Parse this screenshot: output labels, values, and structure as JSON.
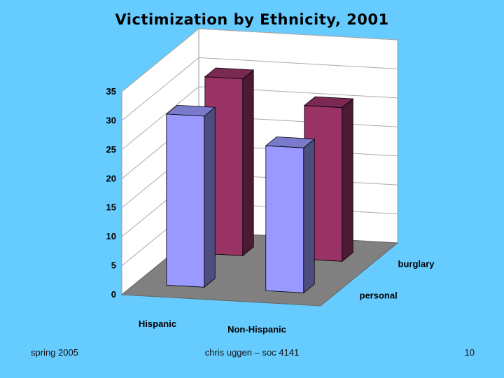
{
  "slide": {
    "title": "Victimization by Ethnicity, 2001",
    "footer_left": "spring 2005",
    "footer_center": "chris uggen – soc 4141",
    "footer_right": "10"
  },
  "chart_data": {
    "type": "bar",
    "title": "Victimization by Ethnicity, 2001",
    "categories": [
      "Hispanic",
      "Non-Hispanic"
    ],
    "series": [
      {
        "name": "personal",
        "values": [
          29.5,
          25
        ]
      },
      {
        "name": "burglary",
        "values": [
          30.5,
          26.5
        ]
      }
    ],
    "ylim": [
      0,
      35
    ],
    "yticks": [
      "0",
      "5",
      "10",
      "15",
      "20",
      "25",
      "30",
      "35"
    ],
    "grid": true,
    "colors": {
      "personal": "#9999ff",
      "burglary": "#993366",
      "floor": "#808080",
      "walls": "#ffffff"
    }
  }
}
